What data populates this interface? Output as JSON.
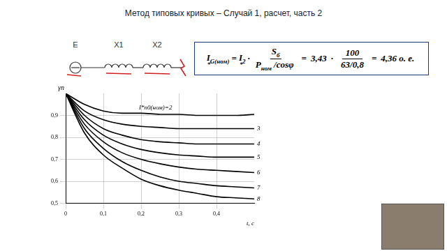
{
  "title": "Метод типовых кривых – Случай 1, расчет, часть 2",
  "circuit": {
    "source": "E",
    "elements": [
      "X1",
      "X2"
    ]
  },
  "formula": [
    {
      "kind": "var",
      "base": "I",
      "sub": "G(ном)",
      "under": "*"
    },
    {
      "kind": "text",
      "text": "="
    },
    {
      "kind": "var",
      "base": "I",
      "sub": "2",
      "under": "*"
    },
    {
      "kind": "text",
      "text": "·"
    },
    {
      "kind": "frac",
      "num": [
        {
          "kind": "var",
          "base": "S",
          "sub": "б"
        }
      ],
      "den": [
        {
          "kind": "var",
          "base": "P",
          "sub": "ном"
        },
        {
          "kind": "text",
          "text": "/cosφ"
        }
      ]
    },
    {
      "kind": "text",
      "text": "="
    },
    {
      "kind": "text",
      "text": "3,43"
    },
    {
      "kind": "text",
      "text": "·"
    },
    {
      "kind": "frac",
      "num": [
        {
          "kind": "text",
          "text": "100"
        }
      ],
      "den": [
        {
          "kind": "text",
          "text": "63/0,8"
        }
      ]
    },
    {
      "kind": "text",
      "text": "="
    },
    {
      "kind": "text",
      "text": "4,36 о. е."
    }
  ],
  "chart_data": {
    "type": "line",
    "x_label": "t, с",
    "y_label": "γп",
    "x": [
      0,
      0.05,
      0.1,
      0.15,
      0.2,
      0.25,
      0.3,
      0.35,
      0.4,
      0.45,
      0.5
    ],
    "series": [
      {
        "name": "I*п0(ном)=2",
        "color": "#000000",
        "marker": "none",
        "line_style": "solid",
        "values": [
          1.0,
          0.95,
          0.92,
          0.91,
          0.91,
          0.905,
          0.905,
          0.9,
          0.9,
          0.9,
          0.905
        ]
      },
      {
        "name": "3",
        "color": "#000000",
        "marker": "none",
        "line_style": "solid",
        "values": [
          1.0,
          0.92,
          0.88,
          0.86,
          0.85,
          0.845,
          0.84,
          0.84,
          0.84,
          0.84,
          0.84
        ]
      },
      {
        "name": "4",
        "color": "#000000",
        "marker": "none",
        "line_style": "solid",
        "values": [
          1.0,
          0.9,
          0.84,
          0.81,
          0.79,
          0.78,
          0.775,
          0.77,
          0.77,
          0.77,
          0.77
        ]
      },
      {
        "name": "5",
        "color": "#000000",
        "marker": "none",
        "line_style": "solid",
        "values": [
          1.0,
          0.88,
          0.81,
          0.77,
          0.745,
          0.73,
          0.72,
          0.715,
          0.71,
          0.71,
          0.71
        ]
      },
      {
        "name": "6",
        "color": "#000000",
        "marker": "none",
        "line_style": "solid",
        "values": [
          1.0,
          0.86,
          0.78,
          0.73,
          0.7,
          0.68,
          0.665,
          0.655,
          0.65,
          0.645,
          0.64
        ]
      },
      {
        "name": "7",
        "color": "#000000",
        "marker": "none",
        "line_style": "solid",
        "values": [
          1.0,
          0.84,
          0.75,
          0.69,
          0.65,
          0.62,
          0.6,
          0.59,
          0.58,
          0.575,
          0.57
        ]
      },
      {
        "name": "8",
        "color": "#000000",
        "marker": "none",
        "line_style": "solid",
        "values": [
          1.0,
          0.82,
          0.72,
          0.66,
          0.61,
          0.58,
          0.56,
          0.545,
          0.53,
          0.525,
          0.52
        ]
      }
    ],
    "xlim": [
      0,
      0.5
    ],
    "xticks": [
      0,
      {
        "value": 0.1,
        "label": "0,1"
      },
      {
        "value": 0.2,
        "label": "0,2"
      },
      {
        "value": 0.3,
        "label": "0,3"
      },
      {
        "value": 0.4,
        "label": "0,4"
      }
    ],
    "ylim": [
      0.5,
      1.0
    ],
    "yticks": [
      {
        "value": 0.5,
        "label": "0,5"
      },
      {
        "value": 0.6,
        "label": "0,6"
      },
      {
        "value": 0.7,
        "label": "0,7"
      },
      {
        "value": 0.8,
        "label": "0,8"
      },
      {
        "value": 0.9,
        "label": "0,9"
      }
    ],
    "grid": true
  }
}
